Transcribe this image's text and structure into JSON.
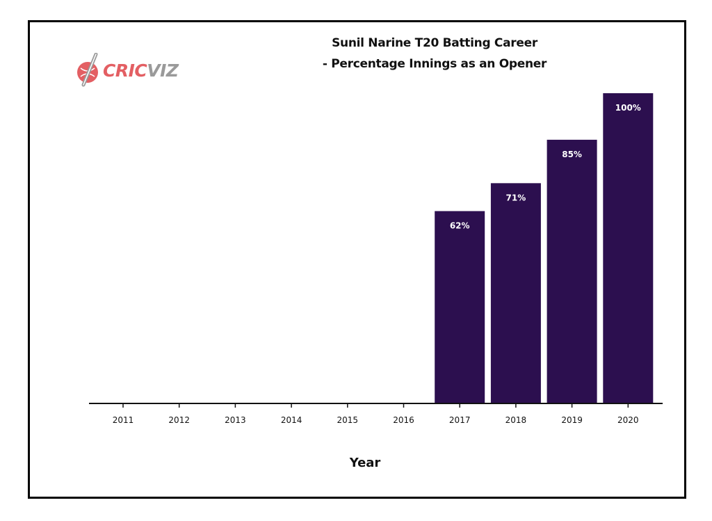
{
  "logo": {
    "part1": "CRIC",
    "part2": "VIZ",
    "icon": "cricket-ball-bat-icon",
    "colors": {
      "accent": "#e35f63",
      "secondary": "#9a9a9a"
    }
  },
  "chart_data": {
    "type": "bar",
    "title_line1": "Sunil Narine T20 Batting Career",
    "title_line2": "- Percentage Innings as an Opener",
    "xlabel": "Year",
    "ylabel": "",
    "categories": [
      "2011",
      "2012",
      "2013",
      "2014",
      "2015",
      "2016",
      "2017",
      "2018",
      "2019",
      "2020"
    ],
    "values": [
      0,
      0,
      0,
      0,
      0,
      0,
      62,
      71,
      85,
      100
    ],
    "data_labels": [
      "",
      "",
      "",
      "",
      "",
      "",
      "62%",
      "71%",
      "85%",
      "100%"
    ],
    "ylim": [
      0,
      100
    ],
    "grid": false,
    "bar_color": "#2c0f4f"
  }
}
